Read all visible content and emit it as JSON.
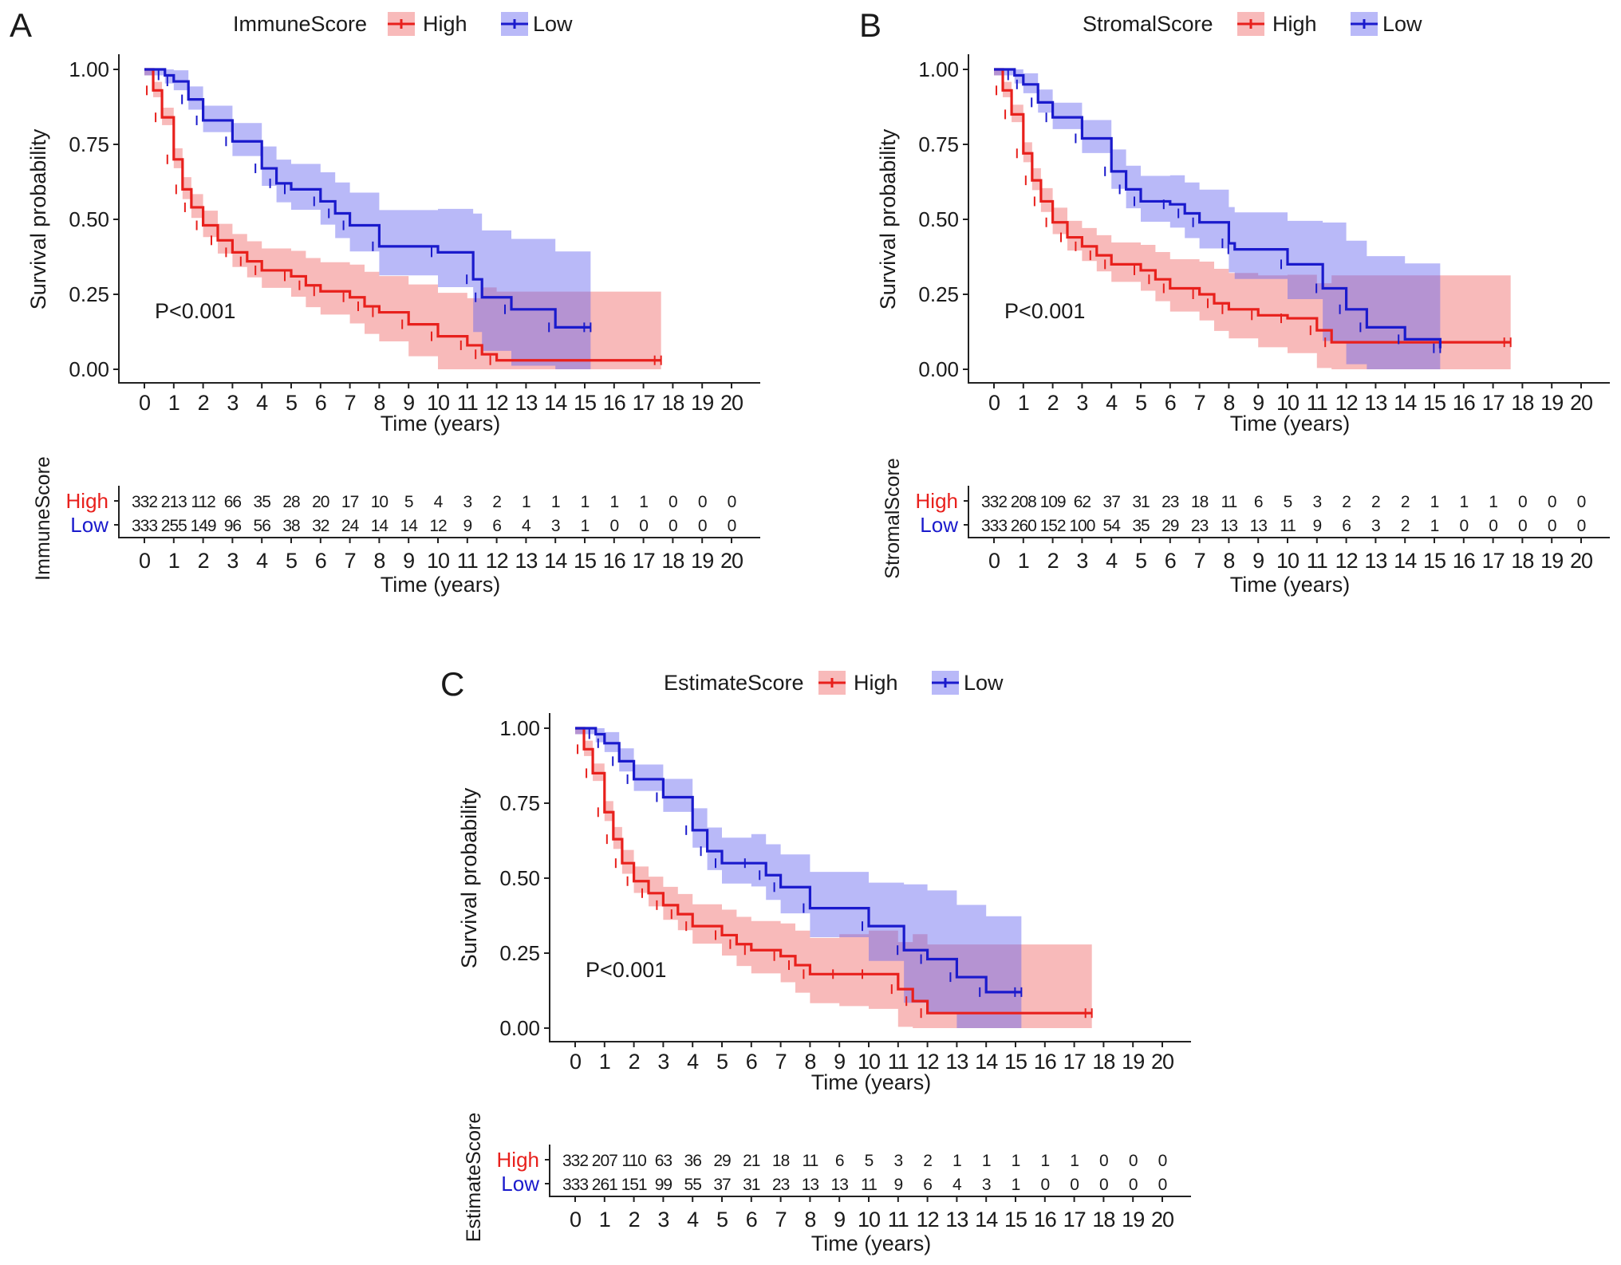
{
  "colors": {
    "high": "#e8201c",
    "low": "#1a1acc",
    "high_band": "rgba(238,90,90,0.42)",
    "low_band": "rgba(100,100,240,0.45)"
  },
  "chart_data": [
    {
      "type": "line",
      "panel_label": "A",
      "legend_title": "ImmuneScore",
      "legend_placement": "top",
      "legend": [
        "High",
        "Low"
      ],
      "xlabel": "Time (years)",
      "ylabel": "Survival probability",
      "xticks": [
        0,
        1,
        2,
        3,
        4,
        5,
        6,
        7,
        8,
        9,
        10,
        11,
        12,
        13,
        14,
        15,
        16,
        17,
        18,
        19,
        20
      ],
      "yticks": [
        "0.00",
        "0.25",
        "0.50",
        "0.75",
        "1.00"
      ],
      "xlim": [
        0,
        20
      ],
      "ylim": [
        0,
        1
      ],
      "pvalue": "P<0.001",
      "series": [
        {
          "name": "High",
          "points": [
            [
              0,
              1
            ],
            [
              0.3,
              0.93
            ],
            [
              0.6,
              0.84
            ],
            [
              1,
              0.7
            ],
            [
              1.3,
              0.6
            ],
            [
              1.6,
              0.54
            ],
            [
              2,
              0.48
            ],
            [
              2.5,
              0.43
            ],
            [
              3,
              0.39
            ],
            [
              3.5,
              0.36
            ],
            [
              4,
              0.33
            ],
            [
              5,
              0.31
            ],
            [
              5.5,
              0.28
            ],
            [
              6,
              0.26
            ],
            [
              7,
              0.24
            ],
            [
              7.5,
              0.21
            ],
            [
              8,
              0.19
            ],
            [
              9,
              0.15
            ],
            [
              10,
              0.11
            ],
            [
              11,
              0.08
            ],
            [
              11.5,
              0.05
            ],
            [
              12,
              0.03
            ],
            [
              17.6,
              0.03
            ]
          ]
        },
        {
          "name": "Low",
          "points": [
            [
              0,
              1
            ],
            [
              0.7,
              0.98
            ],
            [
              1,
              0.96
            ],
            [
              1.5,
              0.9
            ],
            [
              2,
              0.83
            ],
            [
              3,
              0.76
            ],
            [
              4,
              0.67
            ],
            [
              4.5,
              0.62
            ],
            [
              5,
              0.6
            ],
            [
              6,
              0.56
            ],
            [
              6.5,
              0.52
            ],
            [
              7,
              0.48
            ],
            [
              8,
              0.41
            ],
            [
              10,
              0.39
            ],
            [
              11.2,
              0.3
            ],
            [
              11.5,
              0.24
            ],
            [
              12.5,
              0.2
            ],
            [
              14,
              0.14
            ],
            [
              15.2,
              0.14
            ]
          ]
        }
      ],
      "risk_table": {
        "title": "ImmuneScore",
        "xlabel": "Time (years)",
        "rows": [
          {
            "name": "High",
            "values": [
              332,
              213,
              112,
              66,
              35,
              28,
              20,
              17,
              10,
              5,
              4,
              3,
              2,
              1,
              1,
              1,
              1,
              1,
              0,
              0,
              0
            ]
          },
          {
            "name": "Low",
            "values": [
              333,
              255,
              149,
              96,
              56,
              38,
              32,
              24,
              14,
              14,
              12,
              9,
              6,
              4,
              3,
              1,
              0,
              0,
              0,
              0,
              0
            ]
          }
        ]
      }
    },
    {
      "type": "line",
      "panel_label": "B",
      "legend_title": "StromalScore",
      "legend_placement": "top",
      "legend": [
        "High",
        "Low"
      ],
      "xlabel": "Time (years)",
      "ylabel": "Survival probability",
      "xticks": [
        0,
        1,
        2,
        3,
        4,
        5,
        6,
        7,
        8,
        9,
        10,
        11,
        12,
        13,
        14,
        15,
        16,
        17,
        18,
        19,
        20
      ],
      "yticks": [
        "0.00",
        "0.25",
        "0.50",
        "0.75",
        "1.00"
      ],
      "xlim": [
        0,
        20
      ],
      "ylim": [
        0,
        1
      ],
      "pvalue": "P<0.001",
      "series": [
        {
          "name": "High",
          "points": [
            [
              0,
              1
            ],
            [
              0.3,
              0.93
            ],
            [
              0.6,
              0.85
            ],
            [
              1,
              0.72
            ],
            [
              1.3,
              0.63
            ],
            [
              1.6,
              0.56
            ],
            [
              2,
              0.49
            ],
            [
              2.5,
              0.44
            ],
            [
              3,
              0.41
            ],
            [
              3.5,
              0.38
            ],
            [
              4,
              0.35
            ],
            [
              5,
              0.33
            ],
            [
              5.5,
              0.3
            ],
            [
              6,
              0.27
            ],
            [
              7,
              0.25
            ],
            [
              7.5,
              0.22
            ],
            [
              8,
              0.2
            ],
            [
              9,
              0.18
            ],
            [
              10,
              0.17
            ],
            [
              11,
              0.13
            ],
            [
              11.5,
              0.09
            ],
            [
              17.6,
              0.09
            ]
          ]
        },
        {
          "name": "Low",
          "points": [
            [
              0,
              1
            ],
            [
              0.7,
              0.98
            ],
            [
              1,
              0.95
            ],
            [
              1.5,
              0.89
            ],
            [
              2,
              0.84
            ],
            [
              3,
              0.77
            ],
            [
              4,
              0.66
            ],
            [
              4.5,
              0.6
            ],
            [
              5,
              0.56
            ],
            [
              6,
              0.55
            ],
            [
              6.5,
              0.52
            ],
            [
              7,
              0.49
            ],
            [
              8,
              0.42
            ],
            [
              8.2,
              0.4
            ],
            [
              10,
              0.35
            ],
            [
              11.2,
              0.27
            ],
            [
              12,
              0.2
            ],
            [
              12.7,
              0.14
            ],
            [
              14,
              0.1
            ],
            [
              15.2,
              0.07
            ]
          ]
        }
      ],
      "risk_table": {
        "title": "StromalScore",
        "xlabel": "Time (years)",
        "rows": [
          {
            "name": "High",
            "values": [
              332,
              208,
              109,
              62,
              37,
              31,
              23,
              18,
              11,
              6,
              5,
              3,
              2,
              2,
              2,
              1,
              1,
              1,
              0,
              0,
              0
            ]
          },
          {
            "name": "Low",
            "values": [
              333,
              260,
              152,
              100,
              54,
              35,
              29,
              23,
              13,
              13,
              11,
              9,
              6,
              3,
              2,
              1,
              0,
              0,
              0,
              0,
              0
            ]
          }
        ]
      }
    },
    {
      "type": "line",
      "panel_label": "C",
      "legend_title": "EstimateScore",
      "legend_placement": "top",
      "legend": [
        "High",
        "Low"
      ],
      "xlabel": "Time (years)",
      "ylabel": "Survival probability",
      "xticks": [
        0,
        1,
        2,
        3,
        4,
        5,
        6,
        7,
        8,
        9,
        10,
        11,
        12,
        13,
        14,
        15,
        16,
        17,
        18,
        19,
        20
      ],
      "yticks": [
        "0.00",
        "0.25",
        "0.50",
        "0.75",
        "1.00"
      ],
      "xlim": [
        0,
        20
      ],
      "ylim": [
        0,
        1
      ],
      "pvalue": "P<0.001",
      "series": [
        {
          "name": "High",
          "points": [
            [
              0,
              1
            ],
            [
              0.3,
              0.93
            ],
            [
              0.6,
              0.85
            ],
            [
              1,
              0.72
            ],
            [
              1.3,
              0.63
            ],
            [
              1.6,
              0.55
            ],
            [
              2,
              0.49
            ],
            [
              2.5,
              0.45
            ],
            [
              3,
              0.41
            ],
            [
              3.5,
              0.38
            ],
            [
              4,
              0.34
            ],
            [
              5,
              0.31
            ],
            [
              5.5,
              0.28
            ],
            [
              6,
              0.26
            ],
            [
              7,
              0.24
            ],
            [
              7.5,
              0.21
            ],
            [
              8,
              0.18
            ],
            [
              9,
              0.18
            ],
            [
              10,
              0.18
            ],
            [
              11,
              0.13
            ],
            [
              11.5,
              0.09
            ],
            [
              12,
              0.05
            ],
            [
              17.6,
              0.05
            ]
          ]
        },
        {
          "name": "Low",
          "points": [
            [
              0,
              1
            ],
            [
              0.7,
              0.98
            ],
            [
              1,
              0.95
            ],
            [
              1.5,
              0.89
            ],
            [
              2,
              0.83
            ],
            [
              3,
              0.77
            ],
            [
              4,
              0.66
            ],
            [
              4.5,
              0.59
            ],
            [
              5,
              0.55
            ],
            [
              6,
              0.55
            ],
            [
              6.5,
              0.51
            ],
            [
              7,
              0.47
            ],
            [
              8,
              0.4
            ],
            [
              10,
              0.34
            ],
            [
              11.2,
              0.26
            ],
            [
              12,
              0.23
            ],
            [
              13,
              0.17
            ],
            [
              14,
              0.12
            ],
            [
              15.2,
              0.12
            ]
          ]
        }
      ],
      "risk_table": {
        "title": "EstimateScore",
        "xlabel": "Time (years)",
        "rows": [
          {
            "name": "High",
            "values": [
              332,
              207,
              110,
              63,
              36,
              29,
              21,
              18,
              11,
              6,
              5,
              3,
              2,
              1,
              1,
              1,
              1,
              1,
              0,
              0,
              0
            ]
          },
          {
            "name": "Low",
            "values": [
              333,
              261,
              151,
              99,
              55,
              37,
              31,
              23,
              13,
              13,
              11,
              9,
              6,
              4,
              3,
              1,
              0,
              0,
              0,
              0,
              0
            ]
          }
        ]
      }
    }
  ]
}
